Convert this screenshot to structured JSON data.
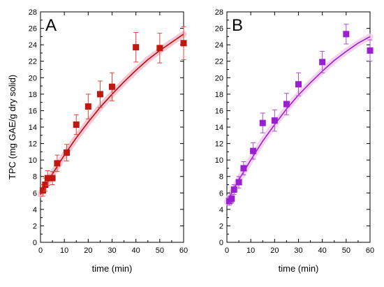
{
  "chart_data": [
    {
      "type": "scatter",
      "panel_label": "A",
      "xlabel": "time (min)",
      "ylabel": "TPC (mg GAE/g dry solid)",
      "xlim": [
        0,
        60
      ],
      "ylim": [
        0,
        28
      ],
      "xticks": [
        0,
        10,
        20,
        30,
        40,
        50,
        60
      ],
      "yticks": [
        0,
        2,
        4,
        6,
        8,
        10,
        12,
        14,
        16,
        18,
        20,
        22,
        24,
        26,
        28
      ],
      "marker_color": "#c0180e",
      "errorbar_color": "#d8483c",
      "fit_color": "#b01008",
      "fit_band_color": "#f5b8cc",
      "points": [
        {
          "x": 1,
          "y": 6.3,
          "err": 0.7
        },
        {
          "x": 2,
          "y": 7.0,
          "err": 0.8
        },
        {
          "x": 3,
          "y": 7.8,
          "err": 0.9
        },
        {
          "x": 5,
          "y": 7.8,
          "err": 0.8
        },
        {
          "x": 7,
          "y": 9.6,
          "err": 1.0
        },
        {
          "x": 11,
          "y": 10.9,
          "err": 1.0
        },
        {
          "x": 15,
          "y": 14.3,
          "err": 1.2
        },
        {
          "x": 20,
          "y": 16.5,
          "err": 1.5
        },
        {
          "x": 25,
          "y": 18.0,
          "err": 1.6
        },
        {
          "x": 30,
          "y": 18.9,
          "err": 1.7
        },
        {
          "x": 40,
          "y": 23.7,
          "err": 1.8
        },
        {
          "x": 50,
          "y": 23.6,
          "err": 1.8
        },
        {
          "x": 60,
          "y": 24.2,
          "err": 2.0
        }
      ],
      "fit_curve": {
        "x": [
          0,
          5,
          10,
          15,
          20,
          25,
          30,
          35,
          40,
          45,
          50,
          55,
          60
        ],
        "y": [
          5.8,
          8.3,
          10.6,
          12.7,
          14.6,
          16.4,
          18.0,
          19.5,
          20.9,
          22.2,
          23.3,
          24.3,
          25.3
        ]
      }
    },
    {
      "type": "scatter",
      "panel_label": "B",
      "xlabel": "time (min)",
      "ylabel": "",
      "xlim": [
        0,
        60
      ],
      "ylim": [
        0,
        28
      ],
      "xticks": [
        0,
        10,
        20,
        30,
        40,
        50,
        60
      ],
      "yticks": [
        0,
        2,
        4,
        6,
        8,
        10,
        12,
        14,
        16,
        18,
        20,
        22,
        24,
        26,
        28
      ],
      "marker_color": "#9a1fd0",
      "errorbar_color": "#b04ad8",
      "fit_color": "#9a22cc",
      "fit_band_color": "#f0c8ec",
      "points": [
        {
          "x": 1,
          "y": 5.0,
          "err": 0.5
        },
        {
          "x": 2,
          "y": 5.3,
          "err": 0.5
        },
        {
          "x": 3,
          "y": 6.4,
          "err": 0.6
        },
        {
          "x": 5,
          "y": 7.3,
          "err": 0.7
        },
        {
          "x": 7,
          "y": 9.0,
          "err": 0.8
        },
        {
          "x": 11,
          "y": 11.1,
          "err": 1.0
        },
        {
          "x": 15,
          "y": 14.5,
          "err": 1.2
        },
        {
          "x": 20,
          "y": 14.8,
          "err": 1.3
        },
        {
          "x": 25,
          "y": 16.8,
          "err": 1.3
        },
        {
          "x": 30,
          "y": 19.2,
          "err": 1.4
        },
        {
          "x": 40,
          "y": 21.9,
          "err": 1.3
        },
        {
          "x": 50,
          "y": 25.3,
          "err": 1.2
        },
        {
          "x": 60,
          "y": 23.3,
          "err": 1.3
        }
      ],
      "fit_curve": {
        "x": [
          0,
          5,
          10,
          15,
          20,
          25,
          30,
          35,
          40,
          45,
          50,
          55,
          60
        ],
        "y": [
          4.9,
          7.6,
          10.0,
          12.3,
          14.3,
          16.2,
          17.9,
          19.4,
          20.8,
          22.1,
          23.2,
          24.2,
          25.0
        ]
      }
    }
  ]
}
